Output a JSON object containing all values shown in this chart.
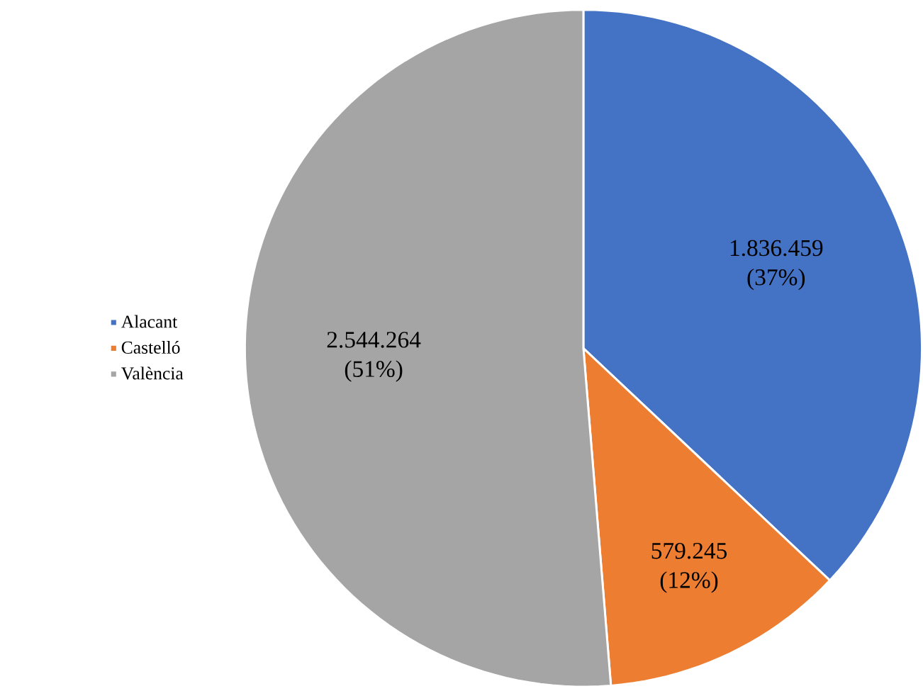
{
  "chart_data": {
    "type": "pie",
    "categories": [
      "Alacant",
      "Castelló",
      "València"
    ],
    "values": [
      1836459,
      579245,
      2544264
    ],
    "colors": [
      "#4472c4",
      "#ed7d31",
      "#a5a5a5"
    ],
    "value_labels": [
      "1.836.459 (37%)",
      "579.245 (12%)",
      "2.544.264 (51%)"
    ],
    "legend": "left"
  }
}
